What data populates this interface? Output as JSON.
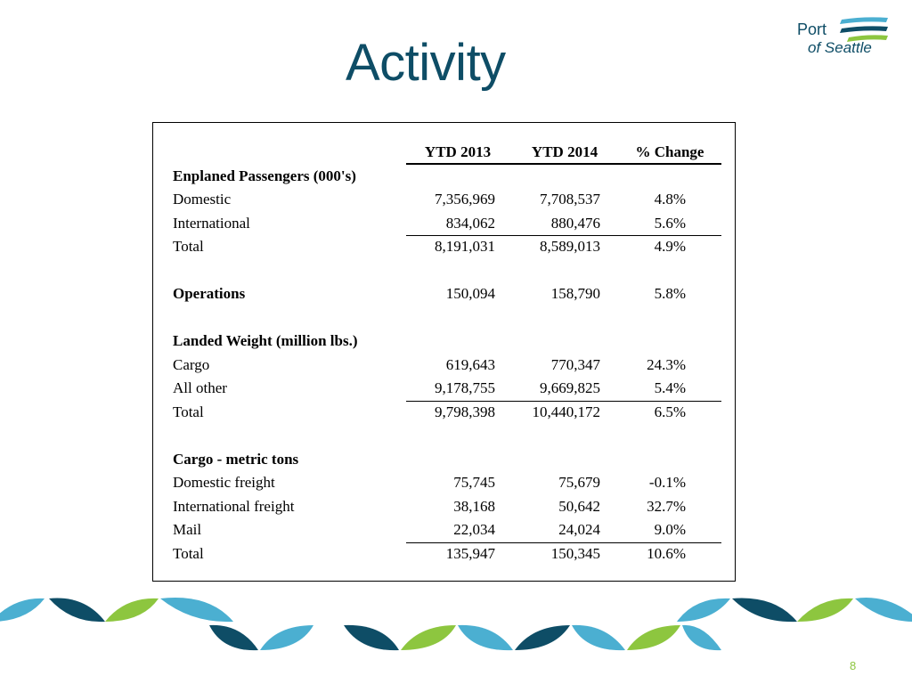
{
  "slide": {
    "title": "Activity",
    "page_number": "8",
    "logo": {
      "line1": "Port",
      "line2": "of Seattle"
    },
    "colors": {
      "title": "#0e4d66",
      "teal": "#0e4d66",
      "cyan": "#4bafd1",
      "green": "#8dc63f"
    }
  },
  "table": {
    "headers": [
      "",
      "YTD 2013",
      "YTD 2014",
      "% Change"
    ],
    "rows": [
      {
        "type": "section",
        "label": "Enplaned Passengers (000's)",
        "v1": "",
        "v2": "",
        "v3": ""
      },
      {
        "type": "data",
        "label": "Domestic",
        "v1": "7,356,969",
        "v2": "7,708,537",
        "v3": "4.8%"
      },
      {
        "type": "data",
        "label": "International",
        "v1": "834,062",
        "v2": "880,476",
        "v3": "5.6%"
      },
      {
        "type": "total",
        "label": "Total",
        "v1": "8,191,031",
        "v2": "8,589,013",
        "v3": "4.9%"
      },
      {
        "type": "blank",
        "label": "",
        "v1": "",
        "v2": "",
        "v3": ""
      },
      {
        "type": "bold-label",
        "label": "Operations",
        "v1": "150,094",
        "v2": "158,790",
        "v3": "5.8%"
      },
      {
        "type": "blank",
        "label": "",
        "v1": "",
        "v2": "",
        "v3": ""
      },
      {
        "type": "section",
        "label": "Landed Weight (million lbs.)",
        "v1": "",
        "v2": "",
        "v3": ""
      },
      {
        "type": "data",
        "label": "Cargo",
        "v1": "619,643",
        "v2": "770,347",
        "v3": "24.3%"
      },
      {
        "type": "data",
        "label": "All other",
        "v1": "9,178,755",
        "v2": "9,669,825",
        "v3": "5.4%"
      },
      {
        "type": "total",
        "label": "Total",
        "v1": "9,798,398",
        "v2": "10,440,172",
        "v3": "6.5%"
      },
      {
        "type": "blank",
        "label": "",
        "v1": "",
        "v2": "",
        "v3": ""
      },
      {
        "type": "section",
        "label": "Cargo - metric tons",
        "v1": "",
        "v2": "",
        "v3": ""
      },
      {
        "type": "data",
        "label": "Domestic freight",
        "v1": "75,745",
        "v2": "75,679",
        "v3": "-0.1%"
      },
      {
        "type": "data",
        "label": "International freight",
        "v1": "38,168",
        "v2": "50,642",
        "v3": "32.7%"
      },
      {
        "type": "data",
        "label": "Mail",
        "v1": "22,034",
        "v2": "24,024",
        "v3": "9.0%"
      },
      {
        "type": "total",
        "label": "Total",
        "v1": "135,947",
        "v2": "150,345",
        "v3": "10.6%"
      }
    ]
  }
}
